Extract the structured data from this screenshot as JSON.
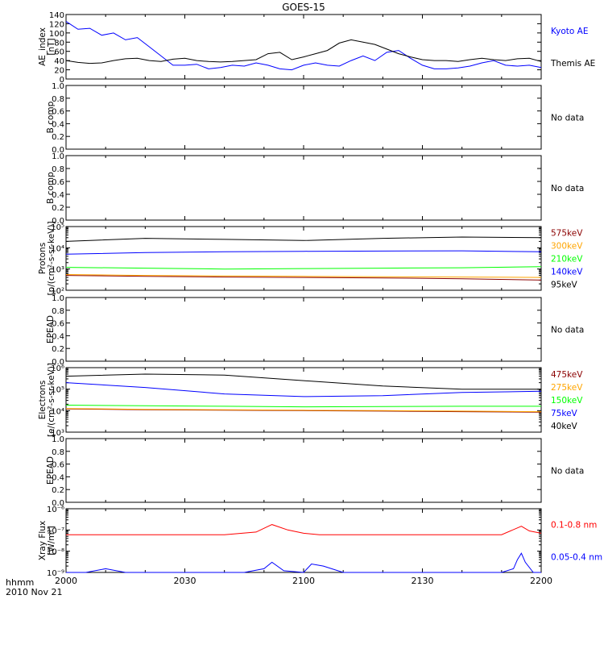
{
  "chart_data": {
    "type": "line",
    "title": "GOES-15",
    "x_ticks": [
      "2000",
      "2030",
      "2100",
      "2130",
      "2200"
    ],
    "x_range": [
      "20:00",
      "22:00"
    ],
    "x_label_line1": "hhmm",
    "x_label_line2": "2010 Nov 21",
    "panels": [
      {
        "id": "ae",
        "ylabel": [
          "AE_index",
          "[nT]"
        ],
        "scale": "linear",
        "ylim": [
          0,
          140
        ],
        "ticks": [
          0,
          20,
          40,
          60,
          80,
          100,
          120,
          140
        ],
        "tick_labels": [
          "0",
          "20",
          "40",
          "60",
          "80",
          "100",
          "120",
          "140"
        ],
        "status": "",
        "series": [
          {
            "name": "Kyoto AE",
            "color": "#0000ff",
            "x": [
              0,
              3,
              6,
              9,
              12,
              15,
              18,
              21,
              24,
              27,
              30,
              33,
              36,
              39,
              42,
              45,
              48,
              51,
              54,
              57,
              60,
              63,
              66,
              69,
              72,
              75,
              78,
              81,
              84,
              87,
              90,
              93,
              96,
              99,
              102,
              105,
              108,
              111,
              114,
              117,
              120
            ],
            "y": [
              125,
              108,
              110,
              95,
              100,
              85,
              90,
              70,
              50,
              30,
              30,
              32,
              22,
              25,
              30,
              28,
              35,
              30,
              22,
              20,
              30,
              35,
              30,
              28,
              40,
              50,
              40,
              58,
              62,
              45,
              30,
              22,
              22,
              24,
              28,
              35,
              40,
              30,
              28,
              30,
              25
            ]
          },
          {
            "name": "Themis AE",
            "color": "#000000",
            "x": [
              0,
              3,
              6,
              9,
              12,
              15,
              18,
              21,
              24,
              27,
              30,
              33,
              36,
              39,
              42,
              45,
              48,
              51,
              54,
              57,
              60,
              63,
              66,
              69,
              72,
              75,
              78,
              81,
              84,
              87,
              90,
              93,
              96,
              99,
              102,
              105,
              108,
              111,
              114,
              117,
              120
            ],
            "y": [
              40,
              36,
              34,
              35,
              40,
              44,
              45,
              40,
              38,
              43,
              45,
              40,
              38,
              37,
              38,
              40,
              42,
              55,
              58,
              42,
              48,
              55,
              62,
              78,
              85,
              80,
              75,
              65,
              55,
              48,
              42,
              40,
              40,
              38,
              42,
              45,
              42,
              40,
              44,
              45,
              38
            ]
          }
        ]
      },
      {
        "id": "bcomp1",
        "ylabel": [
          "B comp"
        ],
        "scale": "linear",
        "ylim": [
          0,
          1
        ],
        "ticks": [
          0,
          0.2,
          0.4,
          0.6,
          0.8,
          1.0
        ],
        "tick_labels": [
          "0.0",
          "0.2",
          "0.4",
          "0.6",
          "0.8",
          "1.0"
        ],
        "status": "No data",
        "series": []
      },
      {
        "id": "bcomp2",
        "ylabel": [
          "B comp"
        ],
        "scale": "linear",
        "ylim": [
          0,
          1
        ],
        "ticks": [
          0,
          0.2,
          0.4,
          0.6,
          0.8,
          1.0
        ],
        "tick_labels": [
          "0.0",
          "0.2",
          "0.4",
          "0.6",
          "0.8",
          "1.0"
        ],
        "status": "No data",
        "series": []
      },
      {
        "id": "protons",
        "ylabel": [
          "Protons",
          "[p/(cm²-s-sr-keV)]"
        ],
        "scale": "log",
        "ylim": [
          100,
          100000
        ],
        "ticks": [
          100,
          1000,
          10000,
          100000
        ],
        "tick_labels": [
          "10²",
          "10³",
          "10⁴",
          "10⁵"
        ],
        "status": "",
        "series": [
          {
            "name": "575keV",
            "color": "#8b0000",
            "x": [
              0,
              20,
              40,
              60,
              80,
              100,
              120
            ],
            "y": [
              500,
              450,
              420,
              400,
              380,
              350,
              300
            ]
          },
          {
            "name": "300keV",
            "color": "#ffa500",
            "x": [
              0,
              20,
              40,
              60,
              80,
              100,
              120
            ],
            "y": [
              550,
              500,
              470,
              450,
              430,
              420,
              400
            ]
          },
          {
            "name": "210keV",
            "color": "#00ff00",
            "x": [
              0,
              20,
              40,
              60,
              80,
              100,
              120
            ],
            "y": [
              1200,
              1100,
              1000,
              1050,
              1100,
              1150,
              1300
            ]
          },
          {
            "name": "140keV",
            "color": "#0000ff",
            "x": [
              0,
              20,
              40,
              60,
              80,
              100,
              120
            ],
            "y": [
              5000,
              6000,
              6500,
              6800,
              7000,
              7200,
              6500
            ]
          },
          {
            "name": "95keV",
            "color": "#000000",
            "x": [
              0,
              20,
              40,
              60,
              80,
              100,
              120
            ],
            "y": [
              20000,
              28000,
              25000,
              22000,
              28000,
              32000,
              30000
            ]
          }
        ]
      },
      {
        "id": "epead1",
        "ylabel": [
          "EPEAD"
        ],
        "scale": "linear",
        "ylim": [
          0,
          1
        ],
        "ticks": [
          0,
          0.2,
          0.4,
          0.6,
          0.8,
          1.0
        ],
        "tick_labels": [
          "0.0",
          "0.2",
          "0.4",
          "0.6",
          "0.8",
          "1.0"
        ],
        "status": "No data",
        "series": []
      },
      {
        "id": "electrons",
        "ylabel": [
          "Electrons",
          "[e/(cm²-s-sr-keV)]"
        ],
        "scale": "log",
        "ylim": [
          1000,
          1000000
        ],
        "ticks": [
          1000,
          10000,
          100000,
          1000000
        ],
        "tick_labels": [
          "10³",
          "10⁴",
          "10⁵",
          "10⁶"
        ],
        "status": "",
        "series": [
          {
            "name": "475keV",
            "color": "#8b0000",
            "x": [
              0,
              20,
              40,
              60,
              80,
              100,
              120
            ],
            "y": [
              12000,
              11000,
              10500,
              10000,
              9500,
              9000,
              8500
            ]
          },
          {
            "name": "275keV",
            "color": "#ffa500",
            "x": [
              0,
              20,
              40,
              60,
              80,
              100,
              120
            ],
            "y": [
              12500,
              11500,
              11000,
              10500,
              10000,
              9500,
              9000
            ]
          },
          {
            "name": "150keV",
            "color": "#00ff00",
            "x": [
              0,
              20,
              40,
              60,
              80,
              100,
              120
            ],
            "y": [
              18000,
              17000,
              16000,
              15000,
              15500,
              16000,
              16000
            ]
          },
          {
            "name": "75keV",
            "color": "#0000ff",
            "x": [
              0,
              20,
              40,
              60,
              80,
              100,
              120
            ],
            "y": [
              200000,
              120000,
              60000,
              45000,
              50000,
              70000,
              80000
            ]
          },
          {
            "name": "40keV",
            "color": "#000000",
            "x": [
              0,
              20,
              40,
              60,
              80,
              100,
              120
            ],
            "y": [
              400000,
              500000,
              450000,
              250000,
              140000,
              100000,
              100000
            ]
          }
        ]
      },
      {
        "id": "epead2",
        "ylabel": [
          "EPEAD"
        ],
        "scale": "linear",
        "ylim": [
          0,
          1
        ],
        "ticks": [
          0,
          0.2,
          0.4,
          0.6,
          0.8,
          1.0
        ],
        "tick_labels": [
          "0.0",
          "0.2",
          "0.4",
          "0.6",
          "0.8",
          "1.0"
        ],
        "status": "No data",
        "series": []
      },
      {
        "id": "xray",
        "ylabel": [
          "Xray Flux",
          "[W/m²]"
        ],
        "scale": "log",
        "ylim": [
          1e-09,
          1e-06
        ],
        "ticks": [
          1e-09,
          1e-08,
          1e-07,
          1e-06
        ],
        "tick_labels": [
          "10⁻⁹",
          "10⁻⁸",
          "10⁻⁷",
          "10⁻⁶"
        ],
        "status": "",
        "series": [
          {
            "name": "0.1-0.8 nm",
            "color": "#ff0000",
            "x": [
              0,
              10,
              20,
              30,
              40,
              48,
              52,
              56,
              60,
              64,
              70,
              80,
              90,
              100,
              110,
              115,
              117,
              120
            ],
            "y": [
              6e-08,
              6e-08,
              6e-08,
              6e-08,
              6e-08,
              8e-08,
              1.8e-07,
              1e-07,
              7e-08,
              6e-08,
              6e-08,
              6e-08,
              6e-08,
              6e-08,
              6e-08,
              1.5e-07,
              9e-08,
              7e-08
            ]
          },
          {
            "name": "0.05-0.4 nm",
            "color": "#0000ff",
            "x": [
              0,
              5,
              10,
              15,
              20,
              25,
              30,
              35,
              40,
              45,
              50,
              52,
              55,
              60,
              62,
              65,
              70,
              75,
              80,
              85,
              90,
              95,
              100,
              105,
              110,
              113,
              114,
              115,
              116,
              118,
              120
            ],
            "y": [
              1e-09,
              1e-09,
              1.5e-09,
              1e-09,
              1e-09,
              1e-09,
              1e-09,
              1e-09,
              1e-09,
              1e-09,
              1.5e-09,
              3e-09,
              1.2e-09,
              1e-09,
              2.5e-09,
              2e-09,
              1e-09,
              1e-09,
              1e-09,
              1e-09,
              1e-09,
              1e-09,
              1e-09,
              1e-09,
              1e-09,
              1.5e-09,
              4e-09,
              8e-09,
              3e-09,
              1e-09,
              1e-09
            ]
          }
        ]
      }
    ]
  }
}
